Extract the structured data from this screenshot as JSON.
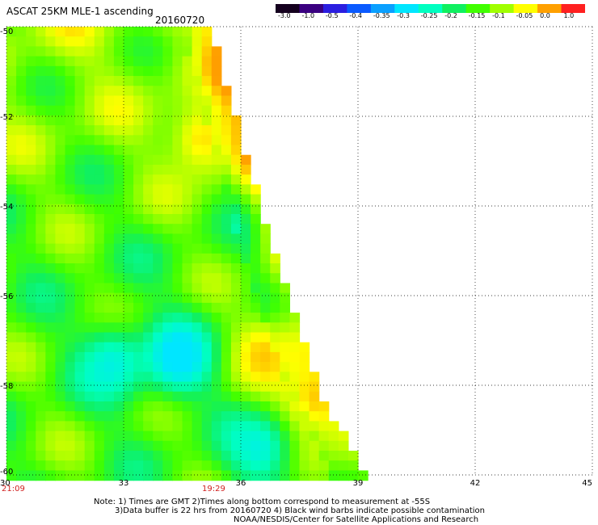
{
  "header": {
    "title": "ASCAT 25KM MLE-1 ascending",
    "date": "20160720"
  },
  "colorbar": {
    "labels": [
      "-3.0",
      "-1.0",
      "-0.5",
      "-0.4",
      "-0.35",
      "-0.3",
      "-0.25",
      "-0.2",
      "-0.15",
      "-0.1",
      "-0.05",
      "0.0",
      "1.0"
    ],
    "colors": [
      "#14001e",
      "#3a0080",
      "#2b1ee0",
      "#0a5aff",
      "#0aa0ff",
      "#00e6ff",
      "#00ffc0",
      "#10f060",
      "#40ff00",
      "#a0ff00",
      "#ffff00",
      "#ffa000",
      "#ff2020"
    ]
  },
  "chart_data": {
    "type": "heatmap",
    "xlim": [
      30,
      45
    ],
    "ylim": [
      -60,
      -50
    ],
    "x_ticks": [
      "30",
      "33",
      "36",
      "39",
      "42",
      "45"
    ],
    "y_ticks": [
      "-50",
      "-52",
      "-54",
      "-56",
      "-58",
      "-60"
    ],
    "swath_east_edge": [
      {
        "lat": -50.0,
        "lon": 35.1
      },
      {
        "lat": -52.0,
        "lon": 35.8
      },
      {
        "lat": -54.0,
        "lon": 36.4
      },
      {
        "lat": -56.0,
        "lon": 37.1
      },
      {
        "lat": -58.0,
        "lon": 37.9
      },
      {
        "lat": -60.0,
        "lon": 39.1
      }
    ],
    "features": [
      {
        "kind": "high",
        "value": "0.0",
        "lat": -52.5,
        "lon": 35.0
      },
      {
        "kind": "high",
        "value": "0.0",
        "lat": -57.3,
        "lon": 36.6
      },
      {
        "kind": "high",
        "value": "0.0",
        "lat": -58.5,
        "lon": 37.6
      },
      {
        "kind": "low",
        "value": "-0.3",
        "lat": -57.5,
        "lon": 32.7
      },
      {
        "kind": "low",
        "value": "-0.35",
        "lat": -57.4,
        "lon": 34.4
      },
      {
        "kind": "low",
        "value": "-0.3",
        "lat": -59.4,
        "lon": 36.5
      }
    ]
  },
  "axes": {
    "time_left": "21:09",
    "time_mid": "19:29"
  },
  "notes": {
    "line1": "Note: 1) Times are GMT 2)Times along bottom correspond to measurement at -55S",
    "line2": "3)Data buffer is 22 hrs from 20160720 4) Black wind barbs indicate possible contamination",
    "line3": "NOAA/NESDIS/Center for Satellite Applications and Research"
  }
}
